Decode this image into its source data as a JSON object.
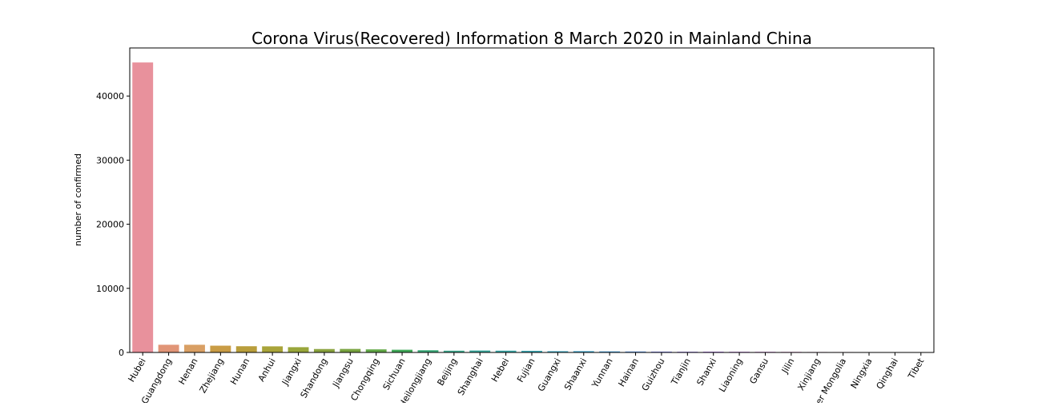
{
  "chart_data": {
    "type": "bar",
    "title": "Corona Virus(Recovered) Information 8 March 2020 in Mainland China",
    "xlabel": "",
    "ylabel": "number of confirmed",
    "ylim": [
      0,
      47500
    ],
    "yticks": [
      0,
      10000,
      20000,
      30000,
      40000
    ],
    "grid": false,
    "categories": [
      "Hubei",
      "Guangdong",
      "Henan",
      "Zhejiang",
      "Hunan",
      "Anhui",
      "Jiangxi",
      "Shandong",
      "Jiangsu",
      "Chongqing",
      "Sichuan",
      "Heilongjiang",
      "Beijing",
      "Shanghai",
      "Hebei",
      "Fujian",
      "Guangxi",
      "Shaanxi",
      "Yunnan",
      "Hainan",
      "Guizhou",
      "Tianjin",
      "Shanxi",
      "Liaoning",
      "Gansu",
      "Jilin",
      "Xinjiang",
      "Inner Mongolia",
      "Ningxia",
      "Qinghai",
      "Tibet"
    ],
    "values": [
      45235,
      1199,
      1198,
      1056,
      970,
      952,
      822,
      534,
      547,
      480,
      422,
      346,
      275,
      303,
      279,
      257,
      196,
      203,
      166,
      152,
      136,
      117,
      124,
      104,
      95,
      86,
      70,
      65,
      60,
      18,
      1
    ],
    "colors": [
      "#e8919c",
      "#e19577",
      "#d99f64",
      "#c99c45",
      "#b99e3c",
      "#a9a43a",
      "#99a63b",
      "#8aa33f",
      "#79a441",
      "#62a847",
      "#3fa857",
      "#3aa978",
      "#3ca88d",
      "#38a89b",
      "#39a7a6",
      "#3aa5b0",
      "#3ba3bd",
      "#3da0c8",
      "#439bd7",
      "#5e97e6",
      "#8a8df0",
      "#a085f2",
      "#b47cf1",
      "#c772ec",
      "#d66ce1",
      "#e16ad0",
      "#ea6cc0",
      "#ee6db1",
      "#ef70a0",
      "#ec7593",
      "#e87b89"
    ]
  }
}
